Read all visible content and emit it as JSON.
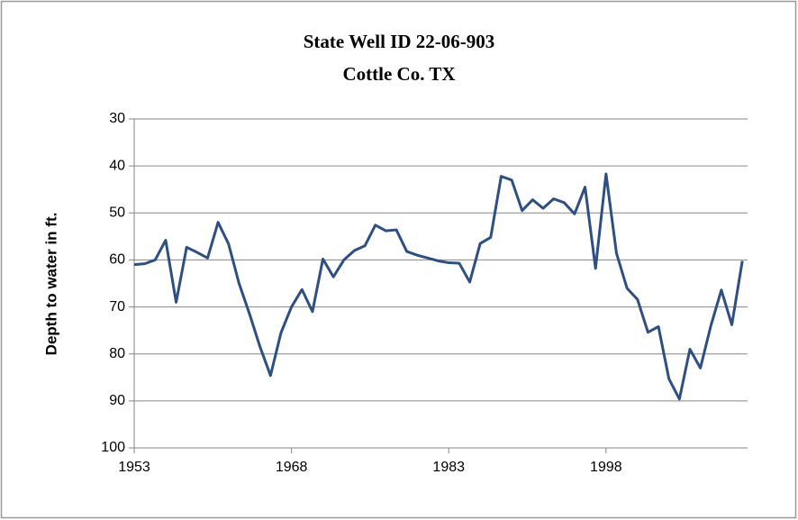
{
  "chart_data": {
    "type": "line",
    "title": "State Well ID 22-06-903",
    "subtitle": "Cottle Co. TX",
    "y_label": "Depth to water in ft.",
    "x": [
      1953,
      1954,
      1955,
      1956,
      1957,
      1958,
      1959,
      1960,
      1961,
      1962,
      1963,
      1964,
      1965,
      1966,
      1967,
      1968,
      1969,
      1970,
      1971,
      1972,
      1973,
      1974,
      1975,
      1976,
      1977,
      1978,
      1979,
      1980,
      1981,
      1982,
      1983,
      1984,
      1985,
      1986,
      1987,
      1988,
      1989,
      1990,
      1991,
      1992,
      1993,
      1994,
      1995,
      1996,
      1997,
      1998,
      1999,
      2000,
      2001,
      2002,
      2003,
      2004,
      2005,
      2006,
      2007,
      2008,
      2009,
      2010,
      2011
    ],
    "series": [
      {
        "name": "Depth to water",
        "color": "#2e4f82",
        "values": [
          61.0,
          60.8,
          60.0,
          55.8,
          69.0,
          57.3,
          58.4,
          59.6,
          52.0,
          56.6,
          65.0,
          71.5,
          78.5,
          84.6,
          75.5,
          70.0,
          66.3,
          71.0,
          59.8,
          63.6,
          60.0,
          58.0,
          57.0,
          52.6,
          53.8,
          53.6,
          58.2,
          59.0,
          59.6,
          60.2,
          60.6,
          60.7,
          64.7,
          56.5,
          55.2,
          42.2,
          43.0,
          49.5,
          47.2,
          49.0,
          47.0,
          47.8,
          50.2,
          44.5,
          61.8,
          41.7,
          58.6,
          66.0,
          68.4,
          75.4,
          74.2,
          85.3,
          89.6,
          79.0,
          83.0,
          74.0,
          66.4,
          73.8,
          60.2
        ]
      }
    ],
    "xlim": [
      1953,
      2011.5
    ],
    "xticks": [
      1953,
      1968,
      1983,
      1998
    ],
    "ylim": [
      30,
      100
    ],
    "yticks": [
      30,
      40,
      50,
      60,
      70,
      80,
      90,
      100
    ],
    "y_inverted": true,
    "grid": true
  }
}
